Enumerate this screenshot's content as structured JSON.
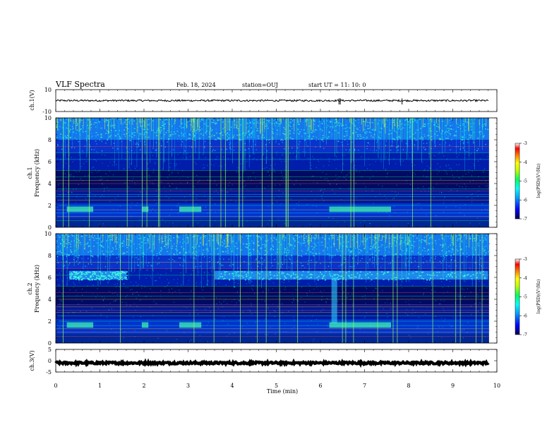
{
  "header": {
    "title": "VLF Spectra",
    "date": "Feb. 18, 2024",
    "station": "station=OUJ",
    "start": "start UT =  11: 10: 0"
  },
  "chart_data": [
    {
      "type": "line",
      "panel": "ch1-waveform",
      "ylabel": "ch.1(V)",
      "yticks": [
        "10",
        "-10"
      ],
      "ylim": [
        -10,
        10
      ],
      "x": [
        0,
        9.82
      ],
      "level": 0,
      "xlim": [
        0,
        10
      ]
    },
    {
      "type": "heatmap",
      "panel": "ch1-spectrogram",
      "ylabel_top": "ch.1",
      "ylabel": "Frequency (kHz)",
      "yticks": [
        "0",
        "2",
        "4",
        "6",
        "8",
        "10"
      ],
      "ylim": [
        0,
        10
      ],
      "xlim": [
        0,
        10
      ],
      "data_end_min": 9.82,
      "bands_khz": [
        0.6,
        1.0,
        1.6,
        2.0,
        2.5,
        3.0,
        3.5,
        4.0,
        4.6,
        5.2,
        6.2,
        6.8
      ],
      "colorbar": {
        "label": "log(PSD)(V²/Hz)",
        "ticks": [
          "-3",
          "-4",
          "-5",
          "-6",
          "-7"
        ],
        "range": [
          -7,
          -3
        ],
        "colors": [
          "#000060",
          "#0000ff",
          "#00a0ff",
          "#00ffff",
          "#00ff60",
          "#c0ff00",
          "#ffff00",
          "#ff8000",
          "#ff0000",
          "#ffffff"
        ]
      }
    },
    {
      "type": "heatmap",
      "panel": "ch2-spectrogram",
      "ylabel_top": "ch.2",
      "ylabel": "Frequency (kHz)",
      "yticks": [
        "0",
        "2",
        "4",
        "6",
        "8",
        "10"
      ],
      "ylim": [
        0,
        10
      ],
      "xlim": [
        0,
        10
      ],
      "data_end_min": 9.82,
      "emission_band_khz": [
        5.8,
        6.6
      ],
      "colorbar": {
        "label": "log(PSD)(V²/Hz)",
        "ticks": [
          "-3",
          "-4",
          "-5",
          "-6",
          "-7"
        ],
        "range": [
          -7,
          -3
        ]
      }
    },
    {
      "type": "line",
      "panel": "ch3-waveform",
      "ylabel": "ch.3(V)",
      "yticks": [
        "5",
        "0",
        "-5"
      ],
      "ylim": [
        -5,
        5
      ],
      "x": [
        0,
        9.82
      ],
      "level": -1,
      "xlim": [
        0,
        10
      ]
    }
  ],
  "xaxis": {
    "label": "Time (min)",
    "ticks": [
      "0",
      "1",
      "2",
      "3",
      "4",
      "5",
      "6",
      "7",
      "8",
      "9",
      "10"
    ]
  }
}
